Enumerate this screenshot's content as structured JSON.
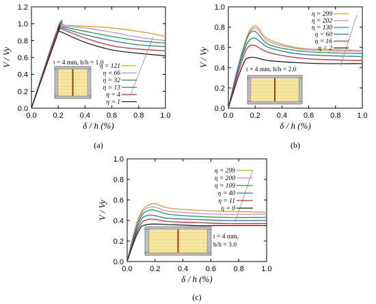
{
  "chart_data": [
    {
      "panel": "(a)",
      "type": "line",
      "xlabel": "δ / h (%)",
      "ylabel": "V / Vy",
      "xlim": [
        0,
        1.0
      ],
      "ylim": [
        0,
        1.2
      ],
      "xticks": [
        "0.0",
        "0.2",
        "0.4",
        "0.6",
        "0.8",
        "1.0"
      ],
      "yticks": [
        "0.0",
        "0.2",
        "0.4",
        "0.6",
        "0.8",
        "1.0",
        "1.2"
      ],
      "annotation": "t = 4 mm, b/h = 1.0",
      "series": [
        {
          "name": "η = 121",
          "color": "#d4a017",
          "x": [
            0,
            0.2,
            0.25,
            0.4,
            0.6,
            0.8,
            1.0
          ],
          "y": [
            0,
            0.96,
            0.98,
            0.97,
            0.95,
            0.91,
            0.85
          ]
        },
        {
          "name": "η = 66",
          "color": "#c58be0",
          "x": [
            0,
            0.2,
            0.25,
            0.4,
            0.6,
            0.8,
            1.0
          ],
          "y": [
            0,
            0.96,
            0.97,
            0.95,
            0.9,
            0.84,
            0.8
          ]
        },
        {
          "name": "η = 32",
          "color": "#1a9850",
          "x": [
            0,
            0.2,
            0.24,
            0.4,
            0.6,
            0.8,
            1.0
          ],
          "y": [
            0,
            0.95,
            0.96,
            0.91,
            0.85,
            0.8,
            0.77
          ]
        },
        {
          "name": "η = 13",
          "color": "#1f77b4",
          "x": [
            0,
            0.2,
            0.23,
            0.4,
            0.6,
            0.8,
            1.0
          ],
          "y": [
            0,
            0.94,
            0.95,
            0.87,
            0.8,
            0.75,
            0.73
          ]
        },
        {
          "name": "η = 4",
          "color": "#d62728",
          "x": [
            0,
            0.2,
            0.22,
            0.4,
            0.6,
            0.8,
            1.0
          ],
          "y": [
            0,
            0.93,
            0.94,
            0.83,
            0.74,
            0.7,
            0.68
          ]
        },
        {
          "name": "η = 1",
          "color": "#222222",
          "x": [
            0,
            0.2,
            0.21,
            0.4,
            0.6,
            0.8,
            1.0
          ],
          "y": [
            0,
            0.9,
            0.91,
            0.78,
            0.69,
            0.65,
            0.62
          ]
        }
      ]
    },
    {
      "panel": "(b)",
      "type": "line",
      "xlabel": "δ / h (%)",
      "ylabel": "V / Vy",
      "xlim": [
        0,
        1.0
      ],
      "ylim": [
        0,
        1.0
      ],
      "xticks": [
        "0.0",
        "0.2",
        "0.4",
        "0.6",
        "0.8",
        "1.0"
      ],
      "yticks": [
        "0.0",
        "0.2",
        "0.4",
        "0.6",
        "0.8",
        "1.0"
      ],
      "annotation": "t = 4 mm, b/h = 2.0",
      "series": [
        {
          "name": "η = 299",
          "color": "#d4a017",
          "x": [
            0,
            0.1,
            0.19,
            0.3,
            0.5,
            0.7,
            1.0
          ],
          "y": [
            0,
            0.55,
            0.81,
            0.68,
            0.6,
            0.58,
            0.57
          ]
        },
        {
          "name": "η = 202",
          "color": "#c58be0",
          "x": [
            0,
            0.1,
            0.19,
            0.3,
            0.5,
            0.7,
            1.0
          ],
          "y": [
            0,
            0.54,
            0.79,
            0.66,
            0.59,
            0.57,
            0.56
          ]
        },
        {
          "name": "η = 130",
          "color": "#1a9850",
          "x": [
            0,
            0.1,
            0.18,
            0.3,
            0.5,
            0.7,
            1.0
          ],
          "y": [
            0,
            0.52,
            0.76,
            0.63,
            0.57,
            0.55,
            0.54
          ]
        },
        {
          "name": "η = 60",
          "color": "#1f77b4",
          "x": [
            0,
            0.1,
            0.18,
            0.3,
            0.5,
            0.7,
            1.0
          ],
          "y": [
            0,
            0.5,
            0.69,
            0.6,
            0.54,
            0.52,
            0.51
          ]
        },
        {
          "name": "η = 16",
          "color": "#d62728",
          "x": [
            0,
            0.1,
            0.17,
            0.3,
            0.5,
            0.7,
            1.0
          ],
          "y": [
            0,
            0.46,
            0.62,
            0.55,
            0.5,
            0.48,
            0.47
          ]
        },
        {
          "name": "η = 2",
          "color": "#222222",
          "x": [
            0,
            0.1,
            0.16,
            0.3,
            0.5,
            0.7,
            1.0
          ],
          "y": [
            0,
            0.4,
            0.5,
            0.47,
            0.45,
            0.44,
            0.44
          ]
        }
      ]
    },
    {
      "panel": "(c)",
      "type": "line",
      "xlabel": "δ / h (%)",
      "ylabel": "V / Vy",
      "xlim": [
        0,
        1.0
      ],
      "ylim": [
        0,
        1.0
      ],
      "xticks": [
        "0.0",
        "0.2",
        "0.4",
        "0.6",
        "0.8",
        "1.0"
      ],
      "yticks": [
        "0.0",
        "0.2",
        "0.4",
        "0.6",
        "0.8",
        "1.0"
      ],
      "annotation_line1": "t = 4 mm,",
      "annotation_line2": "b/h = 3.0",
      "series": [
        {
          "name": "η = 299",
          "color": "#d4a017",
          "x": [
            0,
            0.08,
            0.17,
            0.3,
            0.5,
            0.7,
            1.0
          ],
          "y": [
            0,
            0.42,
            0.56,
            0.52,
            0.5,
            0.49,
            0.48
          ]
        },
        {
          "name": "η = 200",
          "color": "#c58be0",
          "x": [
            0,
            0.08,
            0.16,
            0.3,
            0.5,
            0.7,
            1.0
          ],
          "y": [
            0,
            0.4,
            0.53,
            0.49,
            0.47,
            0.46,
            0.46
          ]
        },
        {
          "name": "η = 109",
          "color": "#1a9850",
          "x": [
            0,
            0.08,
            0.16,
            0.3,
            0.5,
            0.7,
            1.0
          ],
          "y": [
            0,
            0.38,
            0.5,
            0.46,
            0.44,
            0.43,
            0.43
          ]
        },
        {
          "name": "η = 40",
          "color": "#1f77b4",
          "x": [
            0,
            0.08,
            0.15,
            0.3,
            0.5,
            0.7,
            1.0
          ],
          "y": [
            0,
            0.35,
            0.45,
            0.42,
            0.41,
            0.4,
            0.4
          ]
        },
        {
          "name": "η = 11",
          "color": "#d62728",
          "x": [
            0,
            0.08,
            0.15,
            0.3,
            0.5,
            0.7,
            1.0
          ],
          "y": [
            0,
            0.32,
            0.41,
            0.39,
            0.38,
            0.37,
            0.37
          ]
        },
        {
          "name": "η = 0",
          "color": "#222222",
          "x": [
            0,
            0.08,
            0.14,
            0.3,
            0.5,
            0.7,
            1.0
          ],
          "y": [
            0,
            0.29,
            0.36,
            0.36,
            0.35,
            0.35,
            0.35
          ]
        }
      ]
    }
  ]
}
